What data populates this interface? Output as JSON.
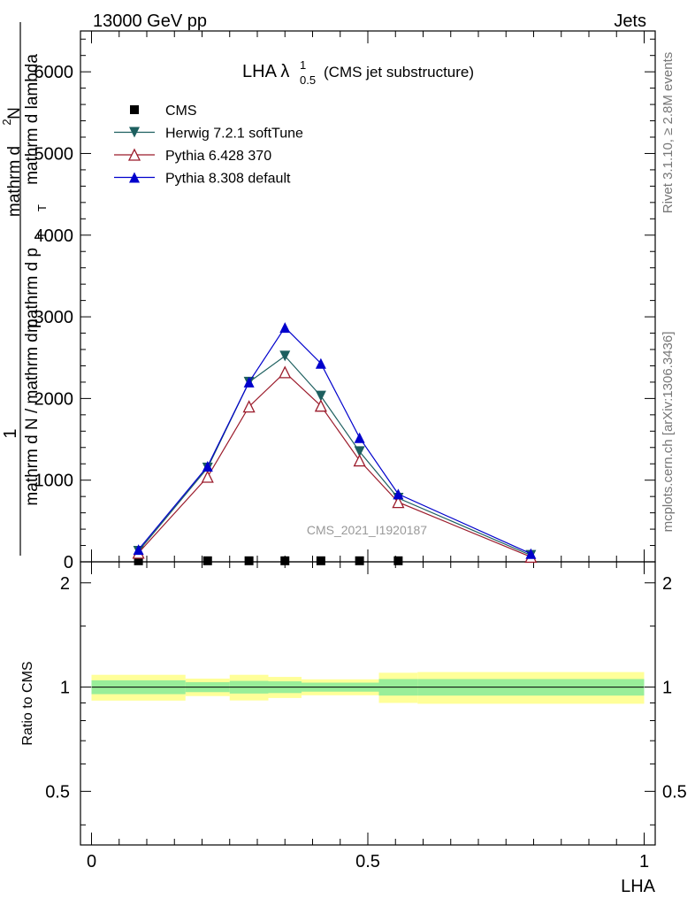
{
  "header": {
    "left": "13000 GeV pp",
    "right": "Jets"
  },
  "side_text": {
    "rivet": "Rivet 3.1.10, ≥ 2.8M events",
    "mcplots": "mcplots.cern.ch [arXiv:1306.3436]"
  },
  "watermark": "CMS_2021_I1920187",
  "chart_data": [
    {
      "type": "line",
      "title": {
        "main": "LHA λ",
        "sup": "1",
        "sub": "0.5",
        "suffix": "(CMS jet substructure)"
      },
      "ylabel": {
        "numerator": "1",
        "denominator_line1": "mathrm d N / mathrm d p",
        "denominator_line1_sub": "T",
        "numerator2": "mathrm d",
        "numerator2_sup": "2",
        "numerator2_rest": "N",
        "denominator2": "mathrm d p",
        "denominator2_sub": "T",
        "denominator2_rest": "mathrm d lambda"
      },
      "xlim": [
        -0.02,
        1.02
      ],
      "ylim": [
        0,
        6500
      ],
      "yticks": [
        0,
        1000,
        2000,
        3000,
        4000,
        5000,
        6000
      ],
      "ytick_labels": [
        "0",
        "1000",
        "2000",
        "3000",
        "4000",
        "5000",
        "6000"
      ],
      "legend_position": "top-left",
      "x": [
        0.085,
        0.21,
        0.285,
        0.35,
        0.415,
        0.485,
        0.555,
        0.795
      ],
      "series": [
        {
          "name": "CMS",
          "marker": "square",
          "color": "#000000",
          "x": [
            0.085,
            0.21,
            0.285,
            0.35,
            0.415,
            0.485,
            0.555
          ],
          "values": [
            2,
            2,
            2,
            2,
            2,
            2,
            2
          ]
        },
        {
          "name": "Herwig 7.2.1 softTune",
          "marker": "triangle-down",
          "color": "#1d5f5f",
          "values": [
            130,
            1150,
            2200,
            2520,
            2030,
            1350,
            780,
            80
          ]
        },
        {
          "name": "Pythia 6.428 370",
          "marker": "triangle-open",
          "color": "#9b1b2b",
          "values": [
            110,
            1040,
            1900,
            2320,
            1910,
            1240,
            730,
            60
          ]
        },
        {
          "name": "Pythia 8.308 default",
          "marker": "triangle-up",
          "color": "#0000cc",
          "values": [
            150,
            1170,
            2200,
            2870,
            2430,
            1520,
            830,
            100
          ]
        }
      ]
    },
    {
      "type": "area",
      "ylabel": "Ratio to CMS",
      "xlabel": "LHA",
      "xlim": [
        -0.02,
        1.02
      ],
      "ylim": [
        0.35,
        2.3
      ],
      "xticks": [
        0,
        0.5,
        1
      ],
      "xtick_labels": [
        "0",
        "0.5",
        "1"
      ],
      "yticks": [
        0.5,
        1,
        2
      ],
      "ytick_labels": [
        "0.5",
        "1",
        "2"
      ],
      "bands": {
        "colors": {
          "outer": "#ffff99",
          "inner": "#99ee99"
        },
        "bins": [
          {
            "x0": 0.0,
            "x1": 0.17,
            "outer": [
              0.914,
              1.085
            ],
            "inner": [
              0.954,
              1.046
            ]
          },
          {
            "x0": 0.17,
            "x1": 0.25,
            "outer": [
              0.942,
              1.058
            ],
            "inner": [
              0.967,
              1.033
            ]
          },
          {
            "x0": 0.25,
            "x1": 0.32,
            "outer": [
              0.915,
              1.085
            ],
            "inner": [
              0.958,
              1.042
            ]
          },
          {
            "x0": 0.32,
            "x1": 0.38,
            "outer": [
              0.93,
              1.07
            ],
            "inner": [
              0.961,
              1.039
            ]
          },
          {
            "x0": 0.38,
            "x1": 0.52,
            "outer": [
              0.947,
              1.053
            ],
            "inner": [
              0.97,
              1.03
            ]
          },
          {
            "x0": 0.52,
            "x1": 0.59,
            "outer": [
              0.9,
              1.1
            ],
            "inner": [
              0.945,
              1.055
            ]
          },
          {
            "x0": 0.59,
            "x1": 1.0,
            "outer": [
              0.895,
              1.105
            ],
            "inner": [
              0.945,
              1.055
            ]
          }
        ]
      },
      "reference_line": 1
    }
  ]
}
